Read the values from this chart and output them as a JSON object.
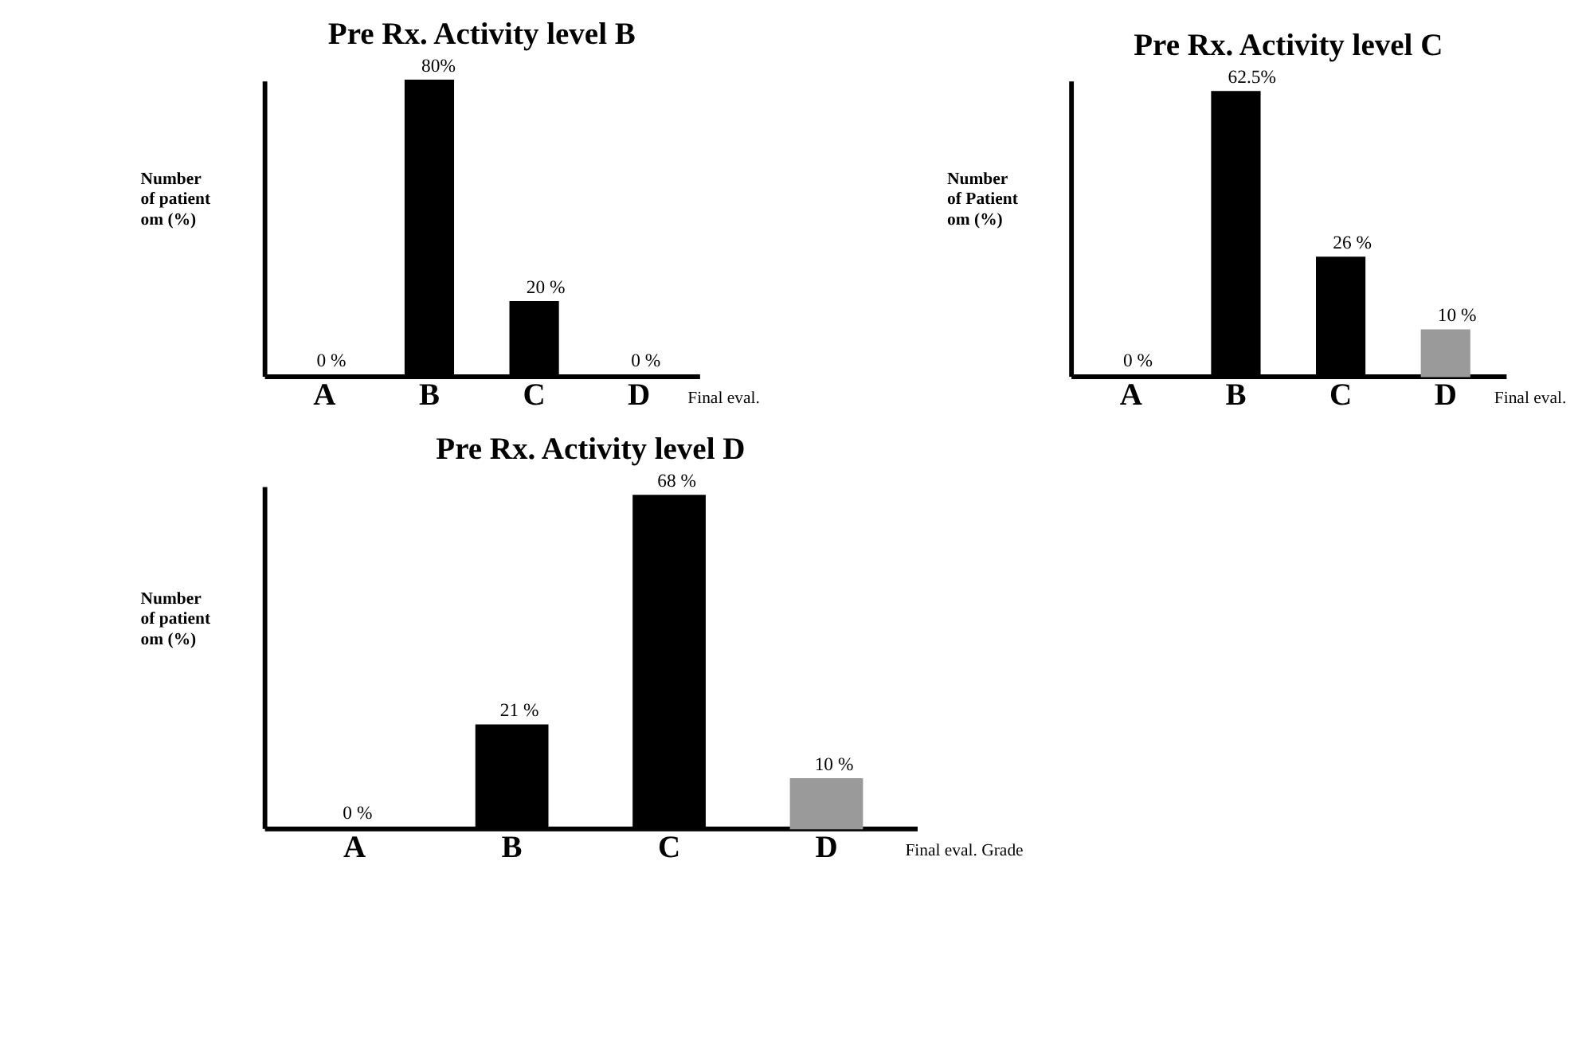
{
  "chart_data": [
    {
      "type": "bar",
      "title": "Pre Rx. Activity level B",
      "xlabel": "Final eval.",
      "ylabel": "Number\n of patient\nom (%)",
      "categories": [
        "A",
        "B",
        "C",
        "D"
      ],
      "values": [
        0,
        80,
        20,
        0
      ],
      "colors": [
        "#000000",
        "#000000",
        "#000000",
        "#000000"
      ],
      "value_labels": [
        "0 %",
        "80%",
        "20 %",
        "0 %"
      ],
      "tick_labels": "x"
    },
    {
      "type": "bar",
      "title": "Pre Rx. Activity level C",
      "xlabel": "Final eval.",
      "ylabel": "Number\n of Patient\nom (%)",
      "categories": [
        "A",
        "B",
        "C",
        "D"
      ],
      "values": [
        0,
        62.5,
        26,
        10
      ],
      "colors": [
        "#000000",
        "#000000",
        "#000000",
        "#9a9a9a"
      ],
      "value_labels": [
        "0 %",
        "62.5%",
        "26 %",
        "10 %"
      ],
      "tick_labels": "x"
    },
    {
      "type": "bar",
      "title": "Pre Rx. Activity level D",
      "xlabel": "Final eval. Grade",
      "ylabel": "Number\n of patient\nom (%)",
      "categories": [
        "A",
        "B",
        "C",
        "D"
      ],
      "values": [
        0,
        21,
        68,
        10
      ],
      "colors": [
        "#000000",
        "#000000",
        "#000000",
        "#9a9a9a"
      ],
      "value_labels": [
        "0 %",
        "21 %",
        "68 %",
        "10 %"
      ],
      "tick_labels": "x"
    }
  ]
}
